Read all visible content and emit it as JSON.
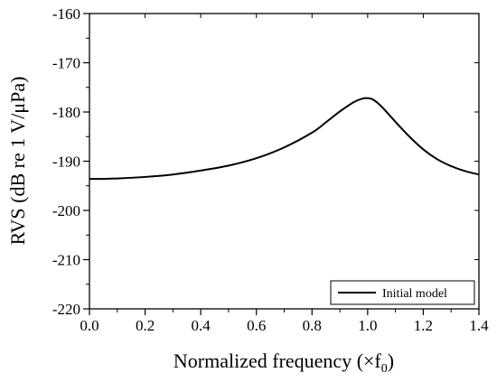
{
  "chart_data": {
    "type": "line",
    "title": "",
    "xlabel": "Normalized frequency (×f",
    "xlabel_sub": "0",
    "xlabel_end": ")",
    "ylabel": "RVS (dB re 1 V/μPa)",
    "xlim": [
      0.0,
      1.4
    ],
    "ylim": [
      -220,
      -160
    ],
    "x_ticks": [
      0.0,
      0.2,
      0.4,
      0.6,
      0.8,
      1.0,
      1.2,
      1.4
    ],
    "x_tick_labels": [
      "0.0",
      "0.2",
      "0.4",
      "0.6",
      "0.8",
      "1.0",
      "1.2",
      "1.4"
    ],
    "y_ticks": [
      -220,
      -210,
      -200,
      -190,
      -180,
      -170,
      -160
    ],
    "y_tick_labels": [
      "-220",
      "-210",
      "-200",
      "-190",
      "-180",
      "-170",
      "-160"
    ],
    "grid": false,
    "legend_position": "bottom-right",
    "series": [
      {
        "name": "Initial model",
        "color": "#000000",
        "x": [
          0.0,
          0.05,
          0.1,
          0.2,
          0.3,
          0.4,
          0.5,
          0.6,
          0.7,
          0.8,
          0.85,
          0.9,
          0.95,
          0.98,
          1.0,
          1.02,
          1.05,
          1.1,
          1.15,
          1.2,
          1.25,
          1.3,
          1.35,
          1.4
        ],
        "y": [
          -193.6,
          -193.6,
          -193.5,
          -193.2,
          -192.7,
          -191.9,
          -190.9,
          -189.4,
          -187.2,
          -184.2,
          -182.1,
          -179.9,
          -178.0,
          -177.3,
          -177.2,
          -177.5,
          -178.9,
          -182.0,
          -185.0,
          -187.6,
          -189.6,
          -191.0,
          -192.0,
          -192.7
        ]
      }
    ]
  }
}
